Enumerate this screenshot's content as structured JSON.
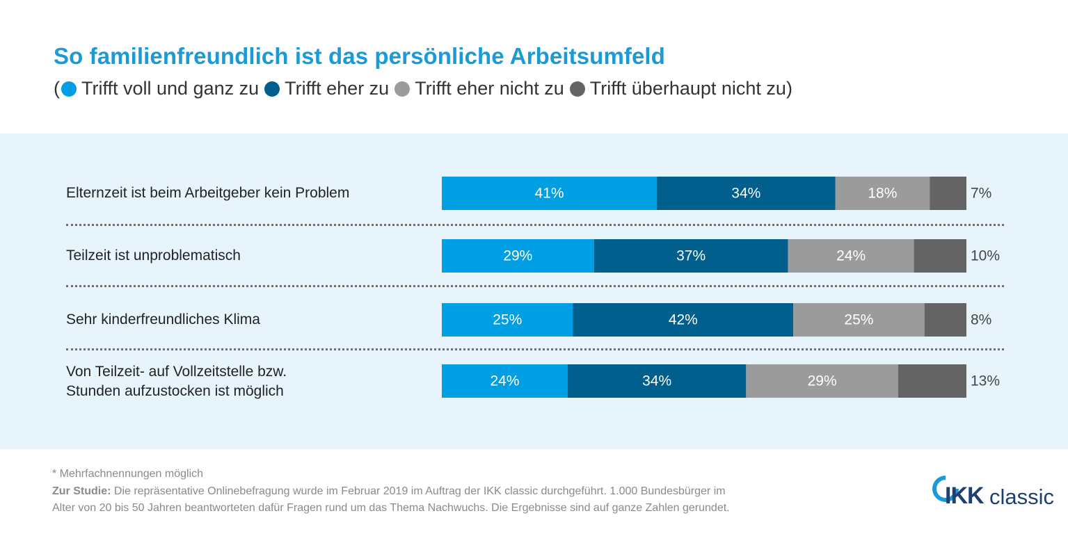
{
  "title": "So familienfreundlich ist das persönliche Arbeitsumfeld",
  "legend": {
    "open": "(",
    "close": ")",
    "items": [
      {
        "label": "Trifft voll und ganz zu",
        "color": "#009ee3"
      },
      {
        "label": "Trifft eher zu",
        "color": "#005f8c"
      },
      {
        "label": "Trifft eher nicht zu",
        "color": "#9b9b9b"
      },
      {
        "label": "Trifft überhaupt nicht zu",
        "color": "#646464"
      }
    ]
  },
  "chart_data": {
    "type": "bar",
    "orientation": "horizontal",
    "stacked": true,
    "title": "So familienfreundlich ist das persönliche Arbeitsumfeld",
    "categories": [
      "Elternzeit ist beim Arbeitgeber kein Problem",
      "Teilzeit ist unproblematisch",
      "Sehr kinderfreundliches Klima",
      "Von Teilzeit- auf Vollzeitstelle bzw. Stunden aufzustocken ist möglich"
    ],
    "category_lines": [
      [
        "Elternzeit ist beim Arbeitgeber kein Problem"
      ],
      [
        "Teilzeit ist unproblematisch"
      ],
      [
        "Sehr kinderfreundliches Klima"
      ],
      [
        "Von Teilzeit- auf Vollzeitstelle bzw.",
        "Stunden aufzustocken ist möglich"
      ]
    ],
    "series": [
      {
        "name": "Trifft voll und ganz zu",
        "values": [
          41,
          29,
          25,
          24
        ],
        "color": "#009ee3"
      },
      {
        "name": "Trifft eher zu",
        "values": [
          34,
          37,
          42,
          34
        ],
        "color": "#005f8c"
      },
      {
        "name": "Trifft eher nicht zu",
        "values": [
          18,
          24,
          25,
          29
        ],
        "color": "#9b9b9b"
      },
      {
        "name": "Trifft überhaupt nicht zu",
        "values": [
          7,
          10,
          8,
          13
        ],
        "color": "#646464"
      }
    ],
    "unit": "%",
    "xlim": [
      0,
      100
    ],
    "grid": false,
    "legend_position": "top"
  },
  "footnote": "* Mehrfachnennungen möglich",
  "study": {
    "label": "Zur Studie:",
    "line1": "Die repräsentative Onlinebefragung wurde im Februar 2019 im Auftrag der IKK classic durchgeführt. 1.000 Bundesbürger im",
    "line2": "Alter von 20 bis 50 Jahren beantworteten dafür Fragen rund um das Thema Nachwuchs. Die Ergebnisse sind auf ganze Zahlen gerundet."
  },
  "logo": {
    "text_ikk": "IKK",
    "text_classic": "classic",
    "color": "#1f3f6e",
    "ring_color": "#1a9bd7"
  }
}
